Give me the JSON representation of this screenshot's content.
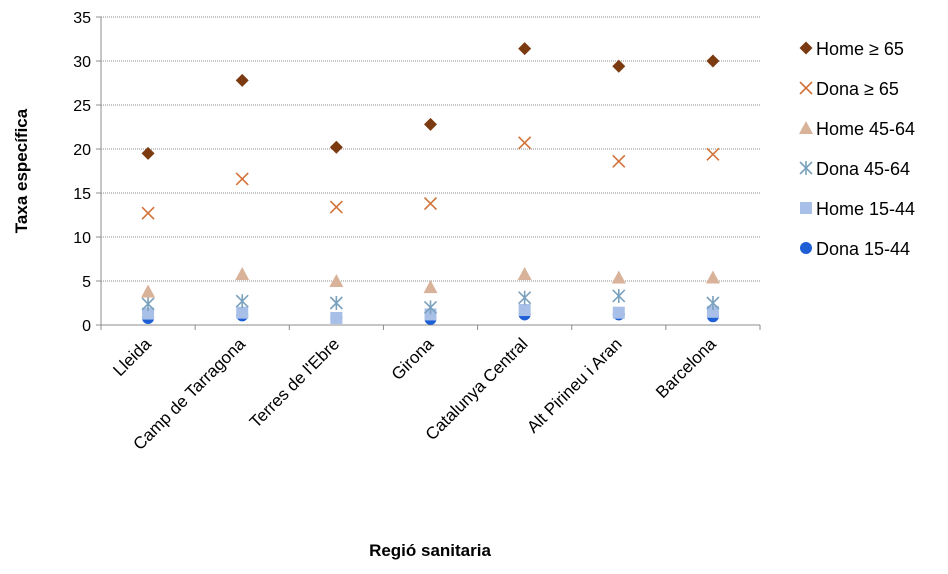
{
  "chart_data": {
    "type": "scatter",
    "xlabel": "Regió sanitaria",
    "ylabel": "Taxa específica",
    "ylim": [
      0,
      35
    ],
    "yticks": [
      0,
      5,
      10,
      15,
      20,
      25,
      30,
      35
    ],
    "grid": true,
    "legend_position": "right",
    "categories": [
      "Lleida",
      "Camp de Tarragona",
      "Terres de l'Ebre",
      "Girona",
      "Catalunya Central",
      "Alt Pirineu i Aran",
      "Barcelona"
    ],
    "series": [
      {
        "name": "Home ≥ 65",
        "marker": "diamond",
        "color": "#7b3a10",
        "values": [
          19.5,
          27.8,
          20.2,
          22.8,
          31.4,
          29.4,
          30.0
        ]
      },
      {
        "name": "Dona ≥ 65",
        "marker": "x",
        "color": "#d2733a",
        "values": [
          12.7,
          16.6,
          13.4,
          13.8,
          20.7,
          18.6,
          19.4
        ]
      },
      {
        "name": "Home 45-64",
        "marker": "triangle",
        "color": "#d9b29a",
        "values": [
          3.8,
          5.8,
          5.0,
          4.3,
          5.8,
          5.4,
          5.4
        ]
      },
      {
        "name": "Dona 45-64",
        "marker": "asterisk",
        "color": "#7aa1bd",
        "values": [
          2.4,
          2.7,
          2.5,
          2.0,
          3.1,
          3.3,
          2.5
        ]
      },
      {
        "name": "Home 15-44",
        "marker": "square",
        "color": "#a8c0e8",
        "values": [
          1.3,
          1.4,
          0.8,
          1.2,
          1.7,
          1.4,
          1.5
        ]
      },
      {
        "name": "Dona 15-44",
        "marker": "circle",
        "color": "#1f5fd6",
        "values": [
          0.8,
          1.1,
          0.8,
          0.7,
          1.2,
          1.2,
          1.0
        ]
      }
    ]
  }
}
